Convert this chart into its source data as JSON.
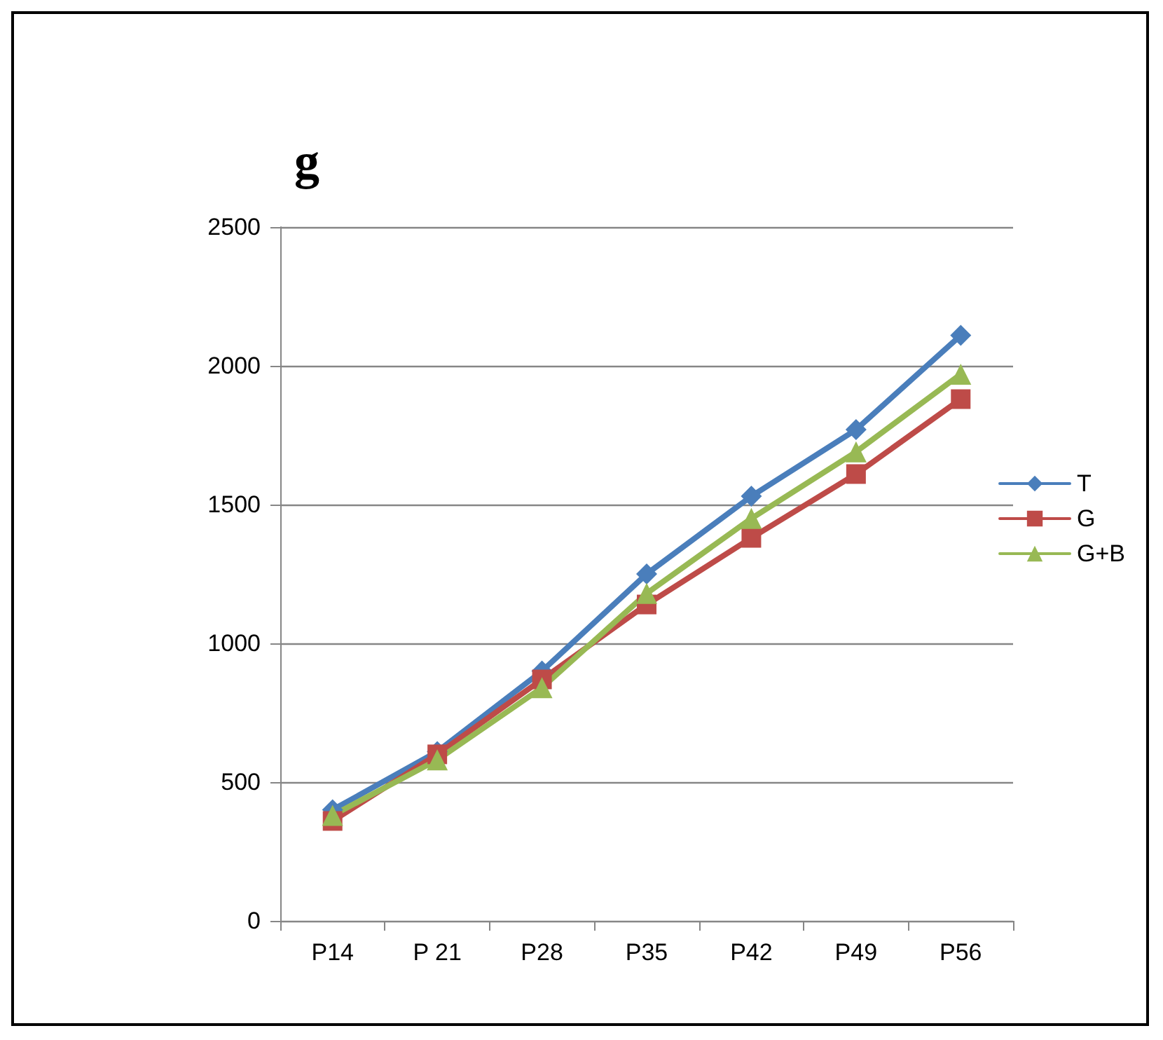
{
  "chart_data": {
    "type": "line",
    "title": "g",
    "categories": [
      "P14",
      "P 21",
      "P28",
      "P35",
      "P42",
      "P49",
      "P56"
    ],
    "series": [
      {
        "name": "T",
        "color": "#4a7ebb",
        "marker": "diamond",
        "values": [
          400,
          610,
          900,
          1250,
          1530,
          1770,
          2110
        ]
      },
      {
        "name": "G",
        "color": "#be4b48",
        "marker": "square",
        "values": [
          360,
          600,
          870,
          1140,
          1380,
          1610,
          1880
        ]
      },
      {
        "name": "G+B",
        "color": "#98b954",
        "marker": "triangle",
        "values": [
          380,
          580,
          840,
          1180,
          1450,
          1690,
          1970
        ]
      }
    ],
    "ylim": [
      0,
      2500
    ],
    "yticks": [
      0,
      500,
      1000,
      1500,
      2000,
      2500
    ],
    "grid": "y",
    "legend": "right",
    "line_style": "solid"
  }
}
